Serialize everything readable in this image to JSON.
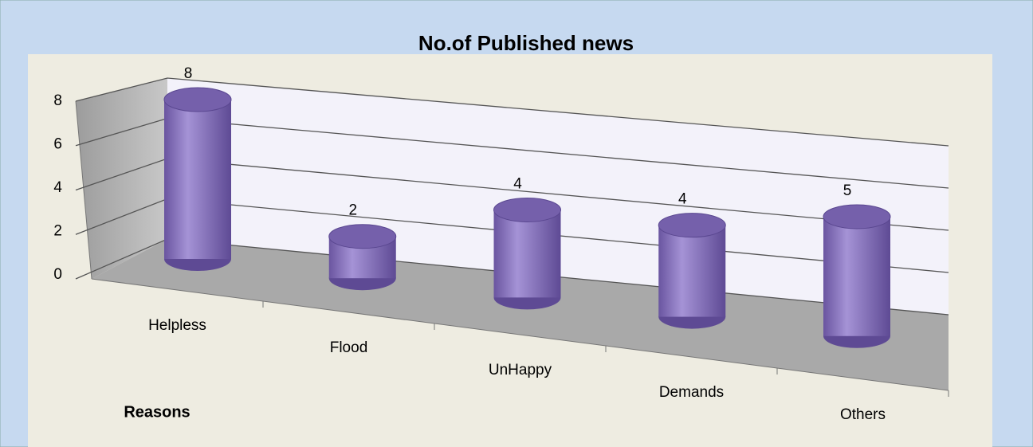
{
  "chart_data": {
    "type": "bar",
    "title": "No.of Published news",
    "x_label": "Reasons",
    "categories": [
      "Helpless",
      "Flood",
      "UnHappy",
      "Demands",
      "Others"
    ],
    "values": [
      8,
      2,
      4,
      4,
      5
    ],
    "color": "#8a72bf",
    "ylim": [
      0,
      8
    ],
    "yticks": [
      0,
      2,
      4,
      6,
      8
    ],
    "grid": true
  }
}
